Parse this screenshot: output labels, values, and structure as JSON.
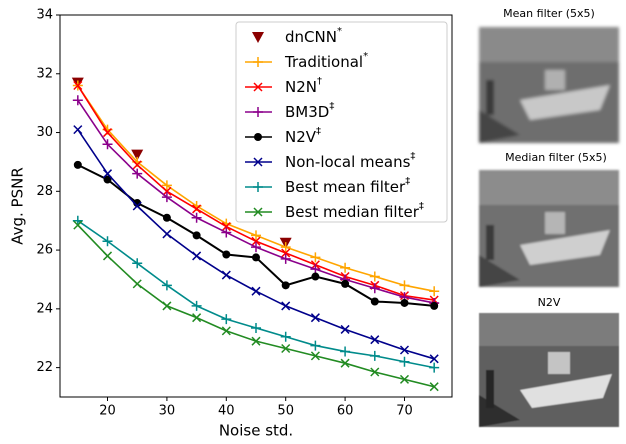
{
  "chart_data": {
    "type": "line",
    "xlabel": "Noise std.",
    "ylabel": "Avg. PSNR",
    "x": [
      15,
      20,
      25,
      30,
      35,
      40,
      45,
      50,
      55,
      60,
      65,
      70,
      75
    ],
    "xlim": [
      12,
      78
    ],
    "xticks": [
      20,
      30,
      40,
      50,
      60,
      70
    ],
    "ylim": [
      21,
      34
    ],
    "yticks": [
      22,
      24,
      26,
      28,
      30,
      32,
      34
    ],
    "legend": "upper right",
    "series": [
      {
        "name": "dnCNN",
        "superscript": "*",
        "color": "#8b0000",
        "marker": "triangle",
        "line": false,
        "x": [
          15,
          25,
          50
        ],
        "values": [
          31.7,
          29.25,
          26.25
        ]
      },
      {
        "name": "Traditional",
        "superscript": "*",
        "color": "#ffa500",
        "marker": "plus",
        "line": true,
        "values": [
          31.6,
          30.1,
          29.0,
          28.2,
          27.5,
          26.9,
          26.5,
          26.1,
          25.75,
          25.4,
          25.1,
          24.8,
          24.6
        ]
      },
      {
        "name": "N2N",
        "superscript": "†",
        "color": "#ff0000",
        "marker": "x",
        "line": true,
        "values": [
          31.6,
          30.0,
          28.9,
          28.0,
          27.4,
          26.8,
          26.3,
          25.9,
          25.5,
          25.1,
          24.8,
          24.45,
          24.3
        ]
      },
      {
        "name": "BM3D",
        "superscript": "‡",
        "color": "#8b008b",
        "marker": "plus",
        "line": true,
        "values": [
          31.1,
          29.6,
          28.6,
          27.8,
          27.1,
          26.6,
          26.1,
          25.7,
          25.35,
          25.0,
          24.7,
          24.4,
          24.2
        ]
      },
      {
        "name": "N2V",
        "superscript": "‡",
        "color": "#000000",
        "marker": "circle",
        "line": true,
        "values": [
          28.9,
          28.4,
          27.6,
          27.1,
          26.5,
          25.85,
          25.75,
          24.8,
          25.1,
          24.85,
          24.25,
          24.2,
          24.1
        ]
      },
      {
        "name": "Non-local means",
        "superscript": "‡",
        "color": "#00008b",
        "marker": "x",
        "line": true,
        "values": [
          30.1,
          28.6,
          27.5,
          26.55,
          25.8,
          25.15,
          24.6,
          24.1,
          23.7,
          23.3,
          22.95,
          22.6,
          22.3
        ]
      },
      {
        "name": "Best mean filter",
        "superscript": "‡",
        "color": "#008b8b",
        "marker": "plus",
        "line": true,
        "values": [
          27.0,
          26.3,
          25.55,
          24.8,
          24.1,
          23.65,
          23.35,
          23.05,
          22.75,
          22.55,
          22.4,
          22.2,
          22.0
        ]
      },
      {
        "name": "Best median filter",
        "superscript": "‡",
        "color": "#228b22",
        "marker": "x",
        "line": true,
        "values": [
          26.85,
          25.8,
          24.85,
          24.1,
          23.7,
          23.25,
          22.9,
          22.65,
          22.4,
          22.15,
          21.85,
          21.6,
          21.35
        ]
      }
    ]
  },
  "images": [
    {
      "title": "Mean filter (5x5)"
    },
    {
      "title": "Median filter (5x5)"
    },
    {
      "title": "N2V"
    }
  ]
}
